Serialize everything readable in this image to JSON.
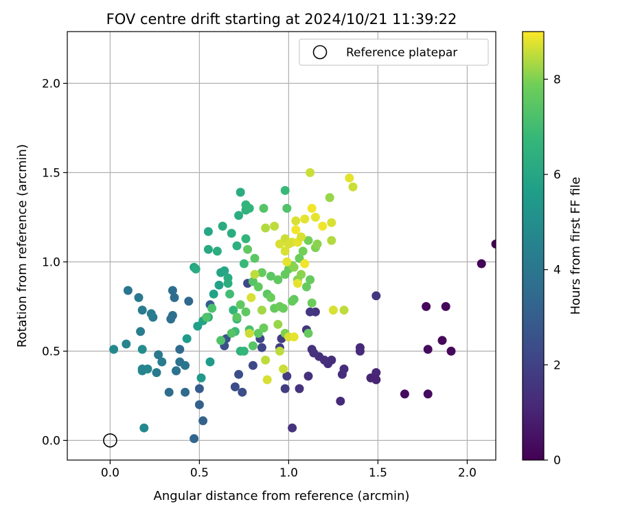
{
  "chart_data": {
    "type": "scatter",
    "title": "FOV centre drift starting at 2024/10/21 11:39:22",
    "xlabel": "Angular distance from reference (arcmin)",
    "ylabel": "Rotation from reference (arcmin)",
    "xlim": [
      -0.24,
      2.16
    ],
    "ylim": [
      -0.11,
      2.29
    ],
    "xticks": [
      0.0,
      0.5,
      1.0,
      1.5,
      2.0
    ],
    "xtick_labels": [
      "0.0",
      "0.5",
      "1.0",
      "1.5",
      "2.0"
    ],
    "yticks": [
      0.0,
      0.5,
      1.0,
      1.5,
      2.0
    ],
    "ytick_labels": [
      "0.0",
      "0.5",
      "1.0",
      "1.5",
      "2.0"
    ],
    "grid": true,
    "legend": {
      "position": "top-right",
      "entries": [
        {
          "label": "Reference platepar",
          "marker": "open-circle"
        }
      ]
    },
    "reference_point": {
      "x": 0.0,
      "y": 0.0
    },
    "colorbar": {
      "label": "Hours from first FF file",
      "range": [
        0,
        9
      ],
      "ticks": [
        0,
        2,
        4,
        6,
        8
      ],
      "tick_labels": [
        "0",
        "2",
        "4",
        "6",
        "8"
      ],
      "colormap": "viridis"
    },
    "points": [
      [
        2.08,
        0.99,
        0.1
      ],
      [
        2.16,
        1.1,
        0.1
      ],
      [
        1.77,
        0.75,
        0.2
      ],
      [
        1.88,
        0.75,
        0.2
      ],
      [
        1.78,
        0.51,
        0.3
      ],
      [
        1.86,
        0.56,
        0.2
      ],
      [
        1.91,
        0.5,
        0.2
      ],
      [
        1.65,
        0.26,
        0.3
      ],
      [
        1.78,
        0.26,
        0.3
      ],
      [
        1.46,
        0.35,
        1.0
      ],
      [
        1.49,
        0.38,
        1.1
      ],
      [
        1.49,
        0.34,
        1.0
      ],
      [
        1.49,
        0.81,
        1.6
      ],
      [
        1.4,
        0.52,
        1.2
      ],
      [
        1.4,
        0.5,
        1.2
      ],
      [
        1.31,
        0.4,
        1.3
      ],
      [
        1.3,
        0.37,
        1.3
      ],
      [
        1.29,
        0.22,
        1.2
      ],
      [
        1.24,
        0.45,
        1.3
      ],
      [
        1.22,
        0.43,
        1.3
      ],
      [
        1.2,
        0.45,
        1.4
      ],
      [
        1.17,
        0.47,
        1.4
      ],
      [
        1.14,
        0.49,
        1.5
      ],
      [
        1.13,
        0.51,
        1.5
      ],
      [
        1.15,
        0.72,
        1.5
      ],
      [
        1.12,
        0.72,
        1.6
      ],
      [
        1.1,
        0.62,
        1.6
      ],
      [
        1.11,
        0.36,
        1.4
      ],
      [
        1.06,
        0.29,
        1.5
      ],
      [
        1.02,
        0.07,
        1.5
      ],
      [
        0.98,
        0.29,
        1.8
      ],
      [
        0.99,
        0.36,
        1.8
      ],
      [
        0.95,
        0.52,
        1.8
      ],
      [
        0.96,
        0.57,
        1.8
      ],
      [
        0.84,
        0.57,
        2.1
      ],
      [
        0.85,
        0.52,
        2.1
      ],
      [
        0.8,
        0.42,
        2.2
      ],
      [
        0.72,
        0.37,
        2.4
      ],
      [
        0.7,
        0.3,
        2.4
      ],
      [
        0.74,
        0.27,
        2.4
      ],
      [
        0.77,
        0.88,
        2.2
      ],
      [
        0.64,
        0.53,
        2.5
      ],
      [
        0.65,
        0.57,
        2.6
      ],
      [
        0.56,
        0.76,
        2.9
      ],
      [
        0.5,
        0.29,
        2.9
      ],
      [
        0.5,
        0.2,
        3.1
      ],
      [
        0.52,
        0.11,
        3.2
      ],
      [
        0.47,
        0.01,
        3.3
      ],
      [
        0.44,
        0.78,
        3.4
      ],
      [
        0.39,
        0.51,
        3.5
      ],
      [
        0.37,
        0.39,
        3.5
      ],
      [
        0.36,
        0.8,
        3.6
      ],
      [
        0.35,
        0.84,
        3.6
      ],
      [
        0.35,
        0.7,
        3.7
      ],
      [
        0.34,
        0.68,
        3.7
      ],
      [
        0.33,
        0.27,
        3.6
      ],
      [
        0.42,
        0.27,
        3.5
      ],
      [
        0.37,
        0.39,
        3.8
      ],
      [
        0.39,
        0.44,
        3.9
      ],
      [
        0.42,
        0.42,
        4.0
      ],
      [
        0.29,
        0.44,
        4.2
      ],
      [
        0.27,
        0.48,
        4.1
      ],
      [
        0.26,
        0.38,
        4.1
      ],
      [
        0.24,
        0.69,
        4.2
      ],
      [
        0.23,
        0.71,
        4.3
      ],
      [
        0.18,
        0.73,
        4.2
      ],
      [
        0.16,
        0.8,
        4.1
      ],
      [
        0.1,
        0.84,
        4.0
      ],
      [
        0.17,
        0.61,
        4.3
      ],
      [
        0.09,
        0.54,
        4.6
      ],
      [
        0.02,
        0.51,
        4.8
      ],
      [
        0.18,
        0.4,
        4.6
      ],
      [
        0.18,
        0.39,
        4.6
      ],
      [
        0.21,
        0.4,
        4.7
      ],
      [
        0.18,
        0.51,
        4.9
      ],
      [
        0.19,
        0.07,
        4.8
      ],
      [
        0.51,
        0.35,
        5.4
      ],
      [
        0.56,
        0.44,
        5.5
      ],
      [
        0.43,
        0.57,
        5.5
      ],
      [
        0.49,
        0.64,
        5.7
      ],
      [
        0.52,
        0.67,
        5.9
      ],
      [
        0.55,
        0.69,
        6.1
      ],
      [
        0.58,
        0.82,
        5.8
      ],
      [
        0.61,
        0.87,
        5.8
      ],
      [
        0.62,
        0.94,
        5.9
      ],
      [
        0.64,
        0.95,
        6.0
      ],
      [
        0.66,
        0.91,
        6.2
      ],
      [
        0.66,
        0.88,
        6.3
      ],
      [
        0.47,
        0.97,
        6.0
      ],
      [
        0.48,
        0.96,
        6.2
      ],
      [
        0.55,
        1.17,
        6.0
      ],
      [
        0.55,
        1.07,
        6.1
      ],
      [
        0.6,
        1.06,
        6.3
      ],
      [
        0.63,
        1.2,
        6.2
      ],
      [
        0.68,
        1.16,
        6.3
      ],
      [
        0.71,
        1.09,
        6.4
      ],
      [
        0.72,
        1.26,
        6.3
      ],
      [
        0.73,
        1.39,
        6.2
      ],
      [
        0.76,
        1.29,
        6.5
      ],
      [
        0.76,
        1.32,
        6.6
      ],
      [
        0.78,
        1.3,
        6.6
      ],
      [
        0.76,
        1.13,
        6.6
      ],
      [
        0.75,
        0.99,
        6.8
      ],
      [
        0.69,
        0.73,
        6.7
      ],
      [
        0.71,
        0.68,
        6.6
      ],
      [
        0.73,
        0.5,
        6.5
      ],
      [
        0.75,
        0.5,
        6.7
      ],
      [
        0.7,
        0.61,
        6.9
      ],
      [
        0.78,
        0.62,
        7.1
      ],
      [
        0.98,
        1.4,
        6.8
      ],
      [
        0.99,
        1.3,
        7.3
      ],
      [
        0.86,
        1.3,
        7.4
      ],
      [
        0.67,
        0.82,
        7.0
      ],
      [
        0.62,
        0.56,
        7.3
      ],
      [
        0.57,
        0.74,
        7.2
      ],
      [
        0.54,
        0.69,
        7.3
      ],
      [
        0.68,
        0.6,
        7.4
      ],
      [
        0.71,
        0.69,
        7.5
      ],
      [
        0.73,
        0.76,
        7.6
      ],
      [
        0.76,
        0.72,
        7.6
      ],
      [
        0.8,
        0.53,
        7.4
      ],
      [
        0.83,
        0.6,
        7.6
      ],
      [
        0.86,
        0.63,
        7.8
      ],
      [
        0.8,
        0.89,
        7.4
      ],
      [
        0.83,
        0.86,
        7.6
      ],
      [
        0.85,
        0.94,
        7.7
      ],
      [
        0.81,
        1.02,
        7.5
      ],
      [
        0.77,
        1.07,
        7.6
      ],
      [
        0.88,
        0.82,
        7.5
      ],
      [
        0.9,
        0.8,
        7.8
      ],
      [
        0.92,
        0.74,
        7.7
      ],
      [
        0.95,
        0.75,
        7.8
      ],
      [
        0.9,
        0.92,
        7.5
      ],
      [
        0.94,
        0.9,
        7.6
      ],
      [
        0.98,
        0.93,
        7.7
      ],
      [
        1.0,
        0.96,
        7.7
      ],
      [
        1.02,
        0.98,
        8.0
      ],
      [
        1.03,
        0.97,
        8.1
      ],
      [
        1.06,
        1.02,
        7.8
      ],
      [
        1.08,
        1.06,
        7.9
      ],
      [
        1.11,
        1.12,
        7.9
      ],
      [
        1.15,
        1.08,
        8.0
      ],
      [
        1.16,
        1.1,
        8.1
      ],
      [
        1.1,
        0.86,
        7.7
      ],
      [
        1.12,
        0.9,
        7.7
      ],
      [
        1.11,
        0.6,
        7.7
      ],
      [
        1.13,
        0.77,
        7.8
      ],
      [
        1.05,
        0.9,
        8.0
      ],
      [
        1.07,
        0.93,
        8.1
      ],
      [
        1.03,
        0.79,
        7.6
      ],
      [
        1.02,
        0.78,
        7.7
      ],
      [
        0.97,
        0.74,
        7.8
      ],
      [
        0.98,
        0.6,
        8.0
      ],
      [
        0.94,
        0.65,
        8.2
      ],
      [
        0.95,
        0.5,
        8.5
      ],
      [
        0.97,
        0.4,
        8.6
      ],
      [
        0.87,
        0.45,
        8.5
      ],
      [
        0.88,
        0.34,
        8.7
      ],
      [
        0.85,
        0.73,
        8.3
      ],
      [
        0.78,
        0.6,
        8.6
      ],
      [
        0.79,
        0.8,
        8.7
      ],
      [
        0.81,
        0.93,
        8.5
      ],
      [
        0.87,
        1.19,
        8.4
      ],
      [
        0.92,
        1.2,
        8.5
      ],
      [
        0.98,
        1.13,
        8.6
      ],
      [
        0.95,
        1.1,
        8.7
      ],
      [
        1.02,
        1.11,
        8.7
      ],
      [
        1.0,
        1.1,
        8.7
      ],
      [
        1.05,
        1.11,
        8.8
      ],
      [
        1.07,
        1.14,
        8.7
      ],
      [
        1.09,
        1.24,
        8.8
      ],
      [
        1.04,
        1.23,
        8.7
      ],
      [
        1.13,
        1.3,
        8.9
      ],
      [
        1.15,
        1.25,
        8.8
      ],
      [
        1.19,
        1.2,
        8.9
      ],
      [
        1.12,
        1.5,
        8.6
      ],
      [
        1.23,
        1.36,
        8.2
      ],
      [
        1.34,
        1.47,
        8.8
      ],
      [
        1.36,
        1.42,
        8.6
      ],
      [
        1.24,
        1.22,
        8.7
      ],
      [
        1.24,
        1.12,
        8.4
      ],
      [
        1.25,
        0.73,
        8.7
      ],
      [
        1.31,
        0.73,
        8.5
      ],
      [
        1.0,
        0.58,
        8.7
      ],
      [
        1.03,
        0.58,
        8.8
      ],
      [
        1.05,
        0.88,
        8.8
      ],
      [
        0.99,
        1.0,
        8.8
      ],
      [
        0.98,
        1.06,
        8.7
      ],
      [
        1.04,
        1.18,
        8.9
      ],
      [
        1.09,
        0.99,
        8.9
      ]
    ]
  }
}
